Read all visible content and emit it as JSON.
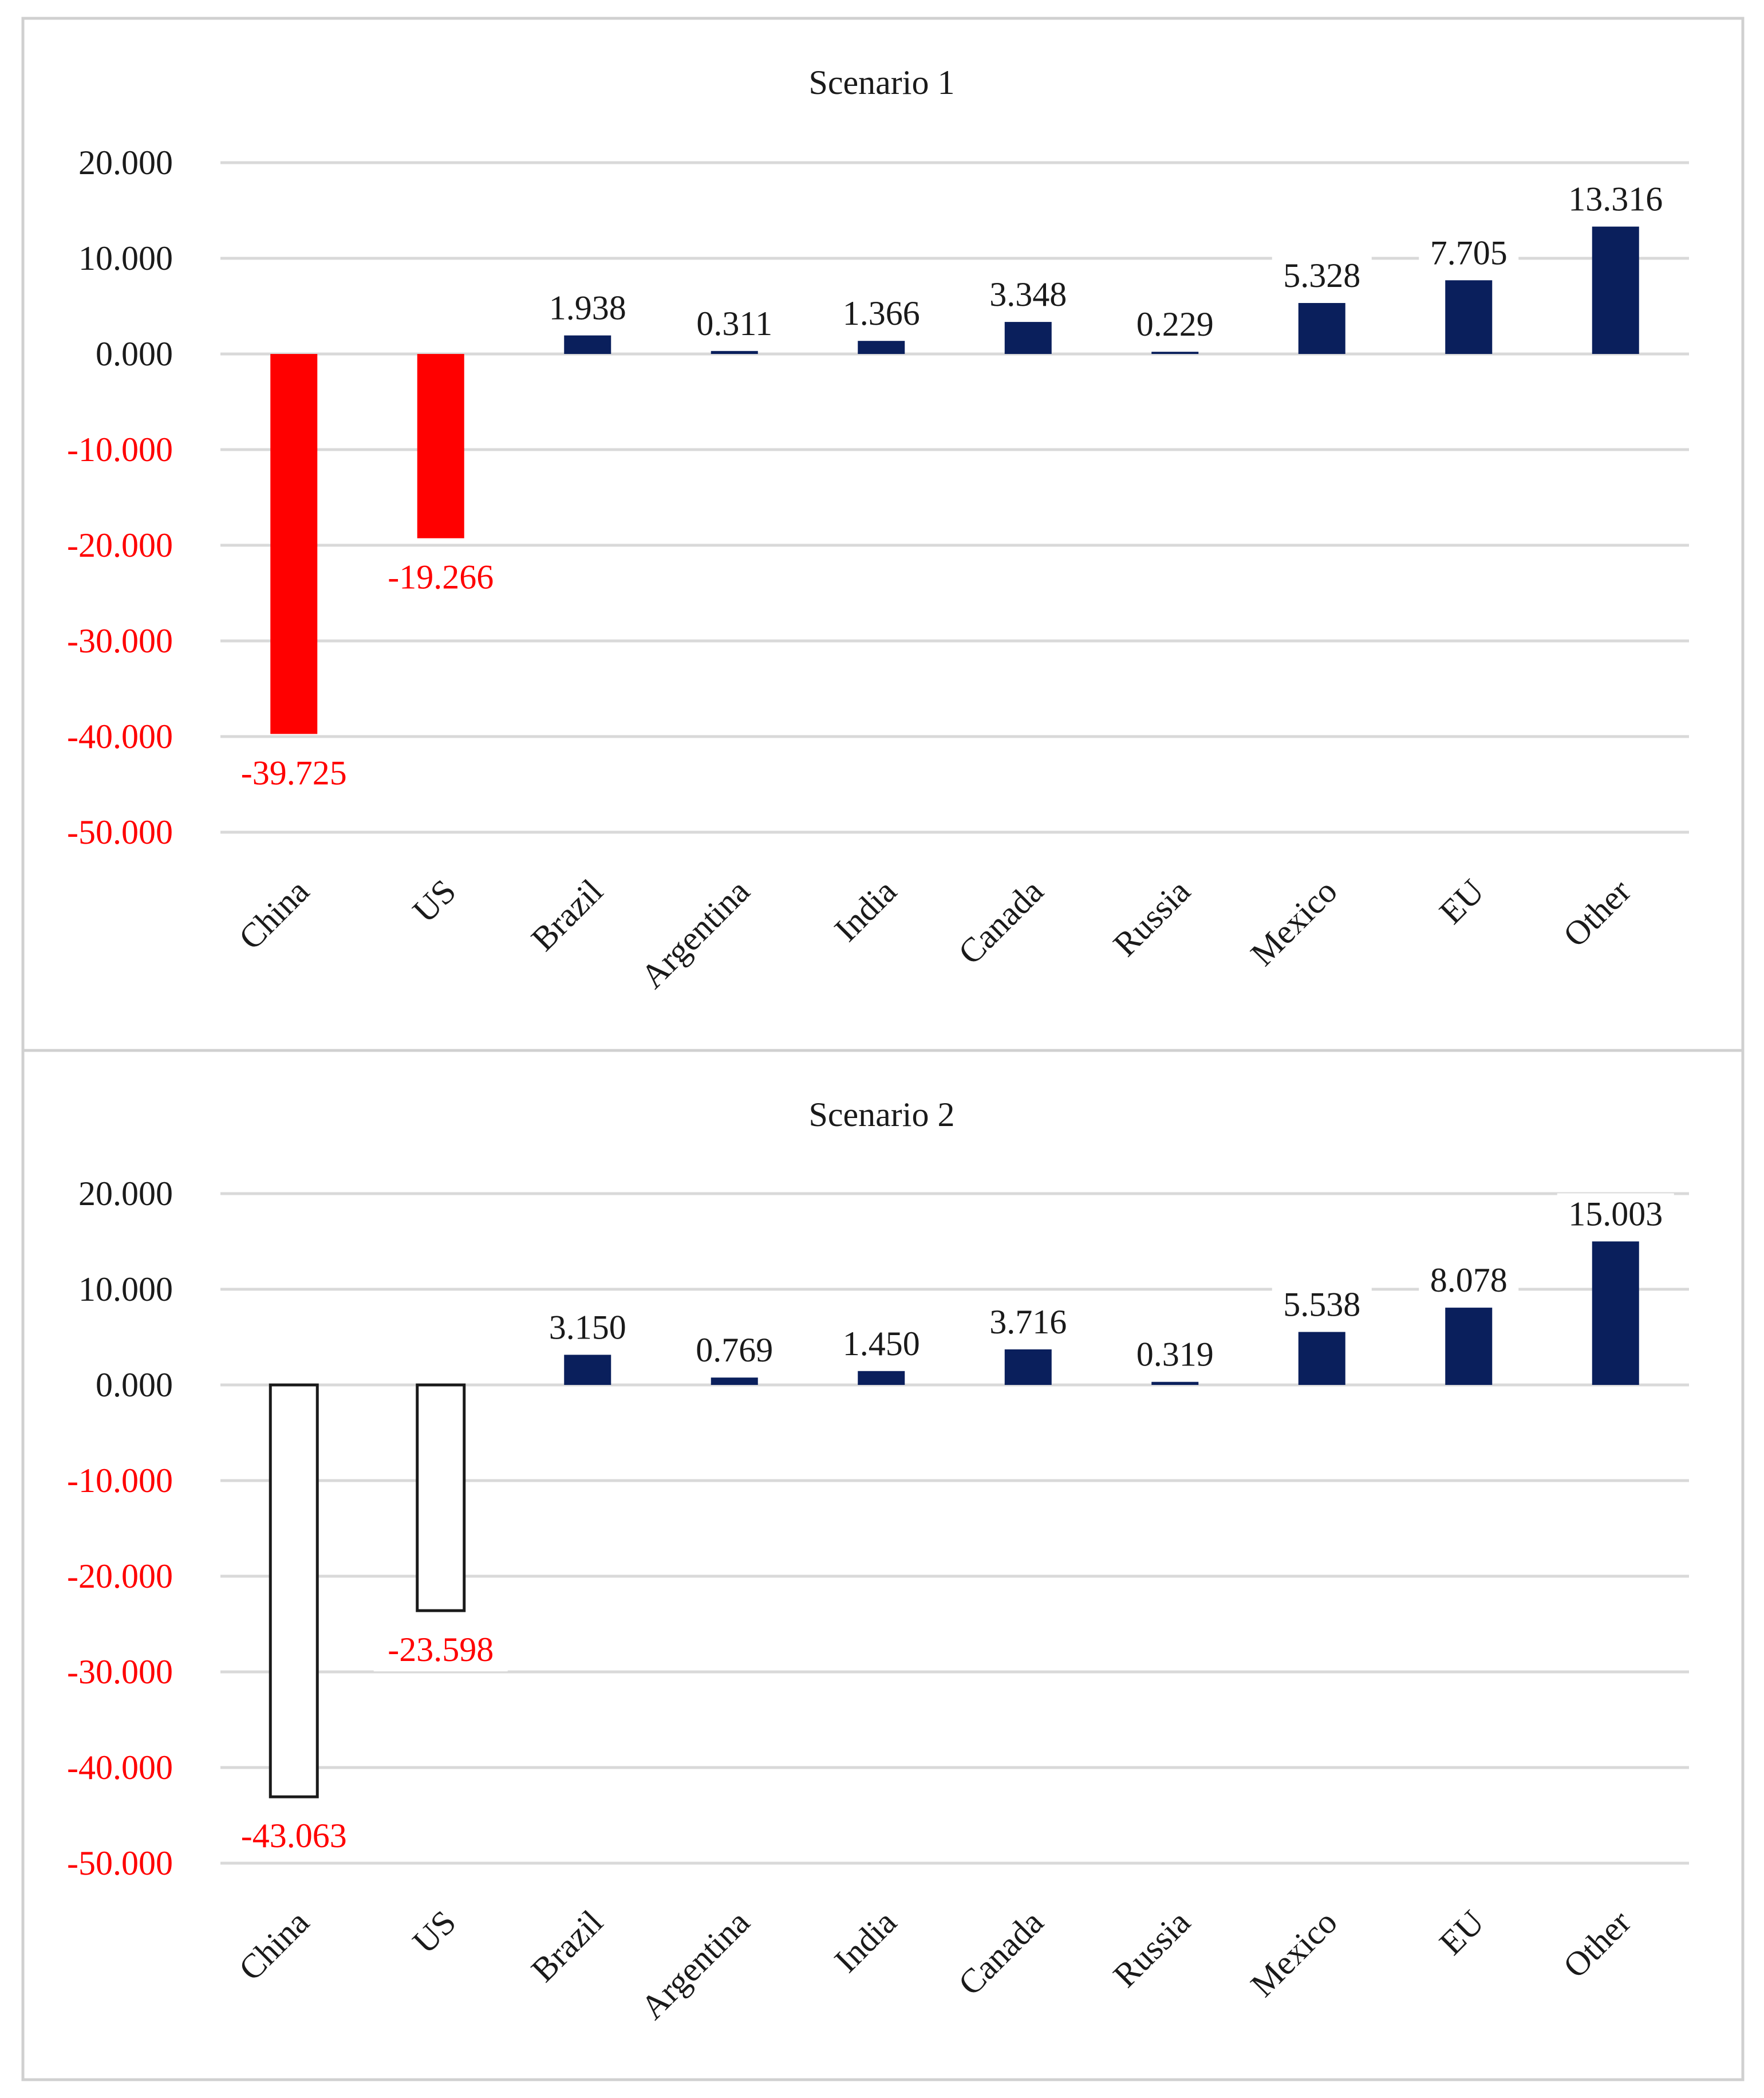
{
  "colors": {
    "positive_bar": "#0a1f5c",
    "negative_bar_scenario1": "#ff0000",
    "negative_bar_scenario2_fill": "#ffffff",
    "negative_bar_scenario2_stroke": "#1a1a1a",
    "negative_text": "#ff0000",
    "text": "#1a1a1a",
    "gridline": "#d9d9d9"
  },
  "chart_data": [
    {
      "type": "bar",
      "title": "Scenario 1",
      "xlabel": "",
      "ylabel": "",
      "ylim": [
        -50,
        20
      ],
      "yticks": [
        20,
        10,
        0,
        -10,
        -20,
        -30,
        -40,
        -50
      ],
      "ytick_labels": [
        "20.000",
        "10.000",
        "0.000",
        "-10.000",
        "-20.000",
        "-30.000",
        "-40.000",
        "-50.000"
      ],
      "grid": true,
      "negative_style": "solid-red",
      "categories": [
        "China",
        "US",
        "Brazil",
        "Argentina",
        "India",
        "Canada",
        "Russia",
        "Mexico",
        "EU",
        "Other"
      ],
      "values": [
        -39.725,
        -19.266,
        1.938,
        0.311,
        1.366,
        3.348,
        0.229,
        5.328,
        7.705,
        13.316
      ],
      "value_labels": [
        "-39.725",
        "-19.266",
        "1.938",
        "0.311",
        "1.366",
        "3.348",
        "0.229",
        "5.328",
        "7.705",
        "13.316"
      ]
    },
    {
      "type": "bar",
      "title": "Scenario 2",
      "xlabel": "",
      "ylabel": "",
      "ylim": [
        -50,
        20
      ],
      "yticks": [
        20,
        10,
        0,
        -10,
        -20,
        -30,
        -40,
        -50
      ],
      "ytick_labels": [
        "20.000",
        "10.000",
        "0.000",
        "-10.000",
        "-20.000",
        "-30.000",
        "-40.000",
        "-50.000"
      ],
      "grid": true,
      "negative_style": "outline",
      "categories": [
        "China",
        "US",
        "Brazil",
        "Argentina",
        "India",
        "Canada",
        "Russia",
        "Mexico",
        "EU",
        "Other"
      ],
      "values": [
        -43.063,
        -23.598,
        3.15,
        0.769,
        1.45,
        3.716,
        0.319,
        5.538,
        8.078,
        15.003
      ],
      "value_labels": [
        "-43.063",
        "-23.598",
        "3.150",
        "0.769",
        "1.450",
        "3.716",
        "0.319",
        "5.538",
        "8.078",
        "15.003"
      ]
    }
  ]
}
